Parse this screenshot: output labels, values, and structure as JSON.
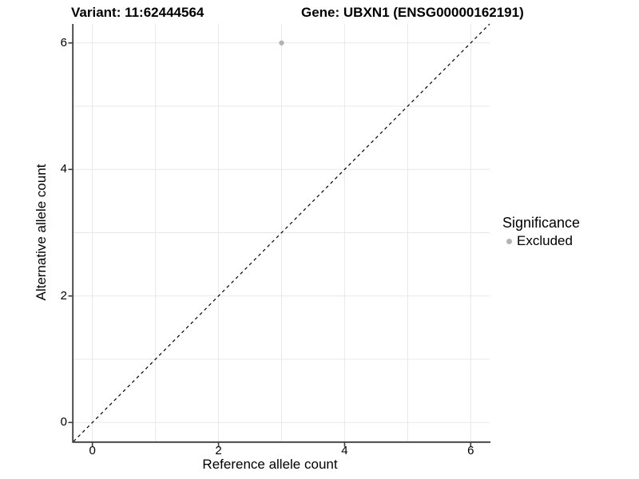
{
  "titles": {
    "variant": "Variant: 11:62444564",
    "gene": "Gene: UBXN1 (ENSG00000162191)"
  },
  "chart_data": {
    "type": "scatter",
    "title_left": "Variant: 11:62444564",
    "title_right": "Gene: UBXN1 (ENSG00000162191)",
    "xlabel": "Reference allele count",
    "ylabel": "Alternative allele count",
    "xlim": [
      -0.3,
      6.3
    ],
    "ylim": [
      -0.3,
      6.3
    ],
    "x_ticks": [
      0,
      2,
      4,
      6
    ],
    "y_ticks": [
      0,
      2,
      4,
      6
    ],
    "x_tick_labels": [
      "0",
      "2",
      "4",
      "6"
    ],
    "y_tick_labels": [
      "0",
      "2",
      "4",
      "6"
    ],
    "gridline_step": 1,
    "grid": true,
    "points": [
      {
        "x": 3,
        "y": 6,
        "series": "Excluded"
      }
    ],
    "reference_line": {
      "kind": "identity",
      "style": "dashed"
    },
    "legend": {
      "title": "Significance",
      "position": "right",
      "entries": [
        {
          "label": "Excluded",
          "color": "#b3b3b3"
        }
      ]
    }
  },
  "colors": {
    "background": "#ffffff",
    "grid": "#e8e8e8",
    "axis": "#3c3c3c",
    "dashed_line": "#000000",
    "point": "#b3b3b3",
    "text": "#000000"
  }
}
